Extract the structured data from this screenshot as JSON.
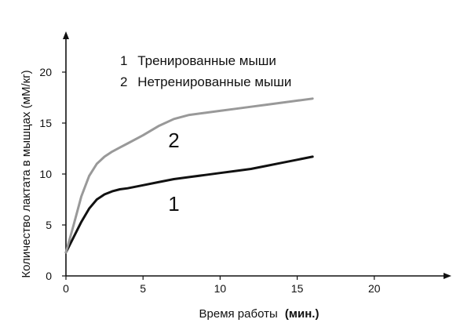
{
  "chart_data": {
    "type": "line",
    "title": "",
    "xlabel": "Время работы",
    "xlabel_unit": "(мин.)",
    "ylabel": "Количество лактата в мышцах (мМ/кг)",
    "xlim": [
      0,
      25
    ],
    "ylim": [
      0,
      25
    ],
    "x_ticks": [
      0,
      5,
      10,
      15,
      20
    ],
    "y_ticks": [
      0,
      5,
      10,
      15,
      20
    ],
    "grid": false,
    "legend_position": "top-center",
    "legend": [
      {
        "key": "1",
        "label": "Тренированные мыши"
      },
      {
        "key": "2",
        "label": "Нетренированные мыши"
      }
    ],
    "series": [
      {
        "name": "1",
        "color": "#111111",
        "x": [
          0,
          0.5,
          1,
          1.5,
          2,
          2.5,
          3,
          3.5,
          4,
          5,
          6,
          7,
          8,
          9,
          10,
          11,
          12,
          13,
          14,
          15,
          16
        ],
        "y": [
          2.3,
          3.8,
          5.3,
          6.6,
          7.5,
          8.0,
          8.3,
          8.5,
          8.6,
          8.9,
          9.2,
          9.5,
          9.7,
          9.9,
          10.1,
          10.3,
          10.5,
          10.8,
          11.1,
          11.4,
          11.7
        ]
      },
      {
        "name": "2",
        "color": "#999999",
        "x": [
          0,
          0.5,
          1,
          1.5,
          2,
          2.5,
          3,
          3.5,
          4,
          5,
          6,
          7,
          8,
          9,
          10,
          11,
          12,
          13,
          14,
          15,
          16
        ],
        "y": [
          2.3,
          5.0,
          7.8,
          9.8,
          11.0,
          11.7,
          12.2,
          12.6,
          13.0,
          13.8,
          14.7,
          15.4,
          15.8,
          16.0,
          16.2,
          16.4,
          16.6,
          16.8,
          17.0,
          17.2,
          17.4
        ]
      }
    ],
    "curve_labels": [
      {
        "text": "1",
        "series": "1",
        "x": 7,
        "y": 6.4
      },
      {
        "text": "2",
        "series": "2",
        "x": 7,
        "y": 12.6
      }
    ]
  }
}
